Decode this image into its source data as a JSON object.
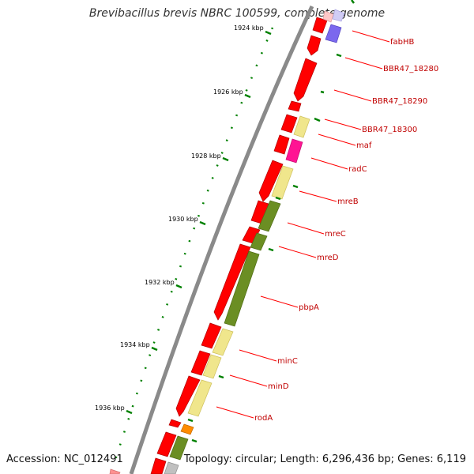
{
  "title": "Brevibacillus brevis NBRC 100599, complete genome",
  "footer": {
    "accession": "Accession: NC_012491",
    "summary": "Topology: circular; Length: 6,296,436 bp; Genes: 6,119"
  },
  "colors": {
    "forward_strand": "#ff0000",
    "yellow_gene": "#f0e68c",
    "green_gene": "#6b8e23",
    "magenta_gene": "#ff1493",
    "blue_gene": "#7b68ee",
    "orange_gene": "#ff8c00",
    "label": "#c00000",
    "tick": "#008000",
    "backbone": "#808080"
  },
  "kbp_labels": [
    "1924 kbp",
    "1926 kbp",
    "1928 kbp",
    "1930 kbp",
    "1932 kbp",
    "1934 kbp",
    "1936 kbp"
  ],
  "gene_labels": [
    "fabHB",
    "BBR47_18280",
    "BBR47_18290",
    "BBR47_18300",
    "maf",
    "radC",
    "mreB",
    "mreC",
    "mreD",
    "pbpA",
    "minC",
    "minD",
    "rodA"
  ]
}
